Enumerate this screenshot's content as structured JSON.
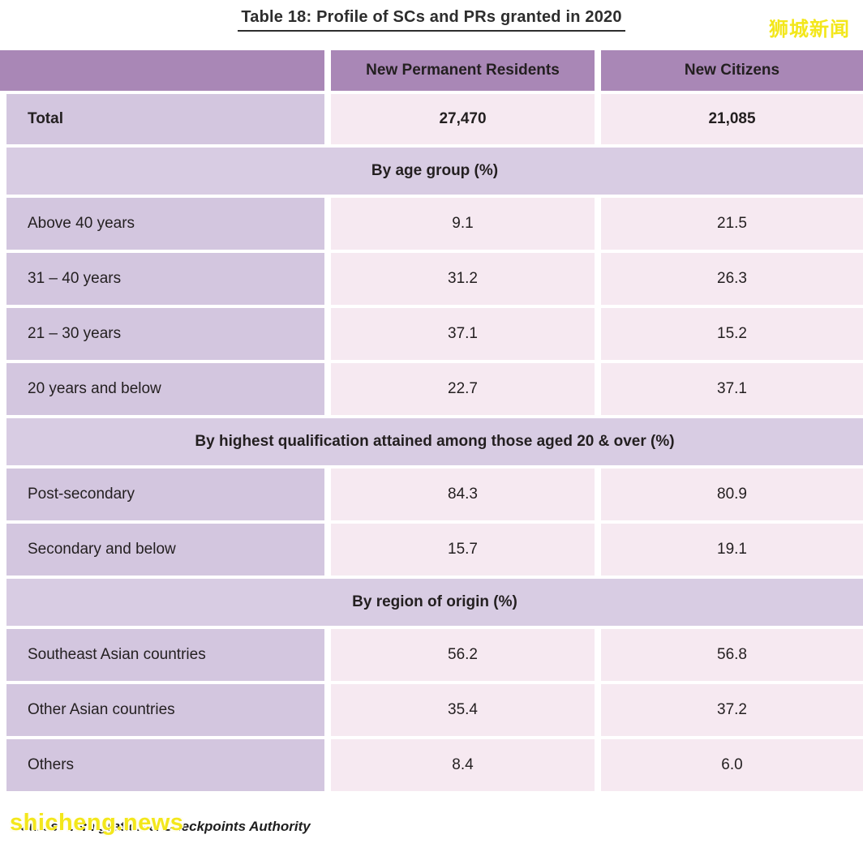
{
  "watermark_top": "狮城新闻",
  "watermark_bottom": "shicheng.news",
  "colors": {
    "header_bg": "#a987b6",
    "label_cell_bg": "#d3c6df",
    "value_cell_bg": "#f6e9f1",
    "section_band_bg": "#d8cce3",
    "watermark_yellow": "#f3e71b",
    "text": "#231f20"
  },
  "chart_data": {
    "type": "table",
    "title": "Table 18: Profile of SCs and PRs granted in 2020",
    "columns": [
      "",
      "New Permanent Residents",
      "New Citizens"
    ],
    "total": {
      "label": "Total",
      "new_permanent_residents": "27,470",
      "new_citizens": "21,085"
    },
    "sections": [
      {
        "title": "By age group (%)",
        "rows": [
          {
            "label": "Above 40 years",
            "pr": "9.1",
            "nc": "21.5"
          },
          {
            "label": "31 – 40 years",
            "pr": "31.2",
            "nc": "26.3"
          },
          {
            "label": "21 – 30 years",
            "pr": "37.1",
            "nc": "15.2"
          },
          {
            "label": "20 years and below",
            "pr": "22.7",
            "nc": "37.1"
          }
        ]
      },
      {
        "title": "By highest qualification attained among those aged 20 & over (%)",
        "rows": [
          {
            "label": "Post-secondary",
            "pr": "84.3",
            "nc": "80.9"
          },
          {
            "label": "Secondary and below",
            "pr": "15.7",
            "nc": "19.1"
          }
        ]
      },
      {
        "title": "By region of origin (%)",
        "rows": [
          {
            "label": "Southeast Asian countries",
            "pr": "56.2",
            "nc": "56.8"
          },
          {
            "label": "Other Asian countries",
            "pr": "35.4",
            "nc": "37.2"
          },
          {
            "label": "Others",
            "pr": "8.4",
            "nc": "6.0"
          }
        ]
      }
    ],
    "source": "Source: Immigration & Checkpoints Authority"
  }
}
